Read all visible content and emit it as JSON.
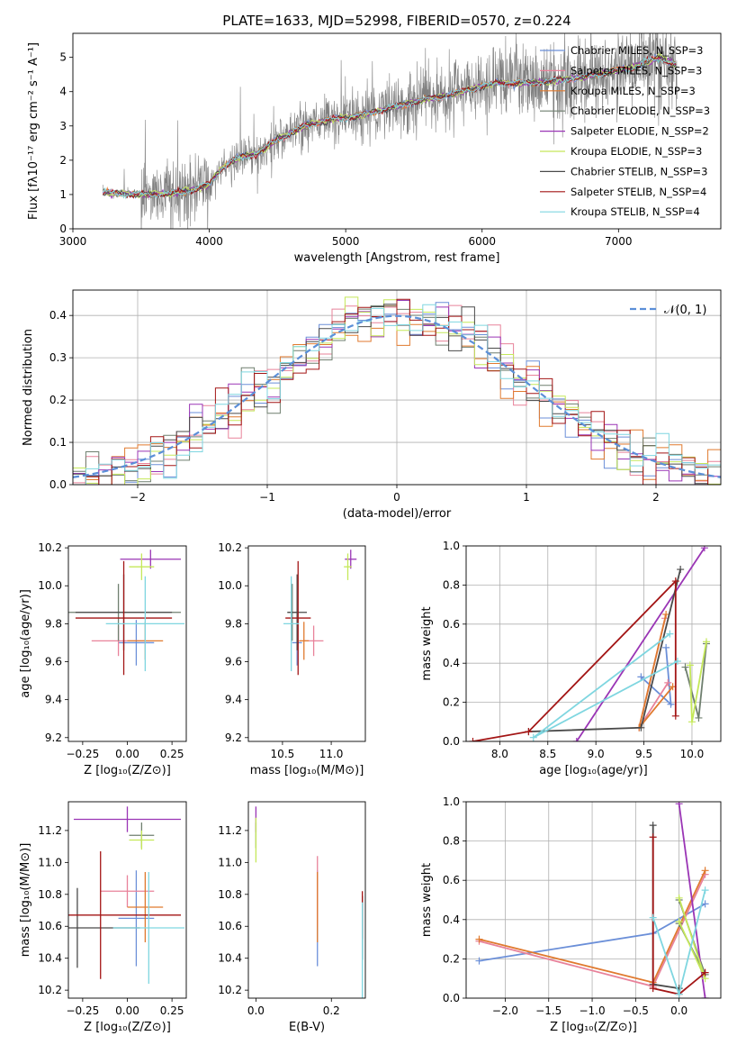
{
  "chart_data": [
    {
      "id": "spectrum",
      "type": "line",
      "title": "PLATE=1633, MJD=52998, FIBERID=0570, z=0.224",
      "xlabel": "wavelength [Angstrom, rest frame]",
      "ylabel": "Flux [fλ10⁻¹⁷ erg cm⁻² s⁻¹ A⁻¹]",
      "xlim": [
        3000,
        7750
      ],
      "ylim": [
        0,
        5.7
      ],
      "xticks": [
        "3000",
        "4000",
        "5000",
        "6000",
        "7000"
      ],
      "yticks": [
        "0",
        "1",
        "2",
        "3",
        "4",
        "5"
      ],
      "data_color": "#808080",
      "continuum_points": [
        [
          3220,
          1.05
        ],
        [
          3500,
          1.0
        ],
        [
          3700,
          1.02
        ],
        [
          3900,
          1.15
        ],
        [
          4000,
          1.3
        ],
        [
          4100,
          1.8
        ],
        [
          4200,
          2.05
        ],
        [
          4350,
          2.2
        ],
        [
          4500,
          2.6
        ],
        [
          4700,
          3.0
        ],
        [
          4900,
          3.2
        ],
        [
          5100,
          3.3
        ],
        [
          5300,
          3.5
        ],
        [
          5500,
          3.7
        ],
        [
          5700,
          3.85
        ],
        [
          5900,
          4.05
        ],
        [
          6100,
          4.25
        ],
        [
          6300,
          4.25
        ],
        [
          6500,
          4.3
        ],
        [
          6700,
          4.4
        ],
        [
          6900,
          4.55
        ],
        [
          7100,
          4.7
        ],
        [
          7300,
          5.0
        ],
        [
          7420,
          4.8
        ]
      ],
      "legend_position": "upper right",
      "series": [
        {
          "name": "Chabrier MILES, N_SSP=3",
          "color": "#6b8fd8"
        },
        {
          "name": "Salpeter MILES, N_SSP=3",
          "color": "#e8829a"
        },
        {
          "name": "Kroupa MILES, N_SSP=3",
          "color": "#e07a2f"
        },
        {
          "name": "Chabrier ELODIE, N_SSP=3",
          "color": "#6f7f6f"
        },
        {
          "name": "Salpeter ELODIE, N_SSP=2",
          "color": "#9a35b5"
        },
        {
          "name": "Kroupa ELODIE, N_SSP=3",
          "color": "#c5e85a"
        },
        {
          "name": "Chabrier STELIB, N_SSP=3",
          "color": "#4a4a4a"
        },
        {
          "name": "Salpeter STELIB, N_SSP=4",
          "color": "#a31515"
        },
        {
          "name": "Kroupa STELIB, N_SSP=4",
          "color": "#7fd6e0"
        }
      ]
    },
    {
      "id": "residuals",
      "type": "histogram",
      "xlabel": "(data-model)/error",
      "ylabel": "Normed distribution",
      "xlim": [
        -2.5,
        2.5
      ],
      "ylim": [
        0,
        0.46
      ],
      "xticks": [
        "−2",
        "−1",
        "0",
        "1",
        "2"
      ],
      "yticks": [
        "0.0",
        "0.1",
        "0.2",
        "0.3",
        "0.4"
      ],
      "bin_width": 0.1,
      "reference_curve": {
        "label": "𝒩(0, 1)",
        "color": "#5b8fd8"
      },
      "grid": true
    },
    {
      "id": "age_vs_Z",
      "type": "errorbar",
      "xlabel": "Z [log₁₀(Z/Z⊙)]",
      "ylabel": "age  [log₁₀(age/yr)]",
      "xlim": [
        -0.33,
        0.33
      ],
      "ylim": [
        9.18,
        10.21
      ],
      "xticks": [
        "−0.25",
        "0.00",
        "0.25"
      ],
      "yticks": [
        "9.2",
        "9.4",
        "9.6",
        "9.8",
        "10.0",
        "10.2"
      ],
      "points": [
        {
          "x": 0.05,
          "y": 9.7,
          "xerr": 0.1,
          "yerr": 0.12,
          "color": "#6b8fd8"
        },
        {
          "x": -0.05,
          "y": 9.71,
          "xerr": 0.15,
          "yerr": 0.08,
          "color": "#e8829a"
        },
        {
          "x": 0.1,
          "y": 9.71,
          "xerr": 0.1,
          "yerr": 0.1,
          "color": "#e07a2f"
        },
        {
          "x": -0.05,
          "y": 9.86,
          "xerr": 0.35,
          "yerr": 0.15,
          "color": "#6f7f6f"
        },
        {
          "x": 0.13,
          "y": 10.14,
          "xerr": 0.17,
          "yerr": 0.05,
          "color": "#9a35b5"
        },
        {
          "x": 0.08,
          "y": 10.1,
          "xerr": 0.07,
          "yerr": 0.07,
          "color": "#c5e85a"
        },
        {
          "x": -0.02,
          "y": 9.86,
          "xerr": 0.27,
          "yerr": 0.2,
          "color": "#4a4a4a"
        },
        {
          "x": -0.02,
          "y": 9.83,
          "xerr": 0.27,
          "yerr": 0.3,
          "color": "#a31515"
        },
        {
          "x": 0.1,
          "y": 9.8,
          "xerr": 0.22,
          "yerr": 0.25,
          "color": "#7fd6e0"
        }
      ]
    },
    {
      "id": "age_vs_mass",
      "type": "errorbar",
      "xlabel": "mass [log₁₀(M/M⊙)]",
      "ylabel": "",
      "xlim": [
        10.15,
        11.35
      ],
      "ylim": [
        9.18,
        10.21
      ],
      "xticks": [
        "10.5",
        "11.0"
      ],
      "yticks": [
        "9.2",
        "9.4",
        "9.6",
        "9.8",
        "10.0",
        "10.2"
      ],
      "points": [
        {
          "x": 10.65,
          "y": 9.7,
          "xerr": 0.05,
          "yerr": 0.12,
          "color": "#6b8fd8"
        },
        {
          "x": 10.82,
          "y": 9.71,
          "xerr": 0.1,
          "yerr": 0.08,
          "color": "#e8829a"
        },
        {
          "x": 10.72,
          "y": 9.71,
          "xerr": 0.05,
          "yerr": 0.1,
          "color": "#e07a2f"
        },
        {
          "x": 10.6,
          "y": 9.86,
          "xerr": 0.05,
          "yerr": 0.15,
          "color": "#6f7f6f"
        },
        {
          "x": 11.2,
          "y": 10.14,
          "xerr": 0.06,
          "yerr": 0.05,
          "color": "#9a35b5"
        },
        {
          "x": 11.17,
          "y": 10.1,
          "xerr": 0.04,
          "yerr": 0.07,
          "color": "#c5e85a"
        },
        {
          "x": 10.65,
          "y": 9.86,
          "xerr": 0.1,
          "yerr": 0.2,
          "color": "#4a4a4a"
        },
        {
          "x": 10.66,
          "y": 9.83,
          "xerr": 0.13,
          "yerr": 0.3,
          "color": "#a31515"
        },
        {
          "x": 10.59,
          "y": 9.8,
          "xerr": 0.08,
          "yerr": 0.25,
          "color": "#7fd6e0"
        }
      ]
    },
    {
      "id": "massweight_vs_age",
      "type": "line",
      "xlabel": "age  [log₁₀(age/yr)]",
      "ylabel": "mass weight",
      "xlim": [
        7.65,
        10.3
      ],
      "ylim": [
        0,
        1.0
      ],
      "xticks": [
        "8.0",
        "8.5",
        "9.0",
        "9.5",
        "10.0"
      ],
      "yticks": [
        "0.0",
        "0.2",
        "0.4",
        "0.6",
        "0.8",
        "1.0"
      ],
      "grid": true,
      "series": [
        {
          "color": "#6b8fd8",
          "points": [
            [
              9.47,
              0.33
            ],
            [
              9.78,
              0.19
            ],
            [
              9.73,
              0.48
            ]
          ]
        },
        {
          "color": "#e8829a",
          "points": [
            [
              9.72,
              0.63
            ],
            [
              9.45,
              0.07
            ],
            [
              9.75,
              0.3
            ]
          ]
        },
        {
          "color": "#e07a2f",
          "points": [
            [
              9.73,
              0.65
            ],
            [
              9.45,
              0.07
            ],
            [
              9.8,
              0.28
            ]
          ]
        },
        {
          "color": "#6f7f6f",
          "points": [
            [
              10.15,
              0.5
            ],
            [
              10.07,
              0.12
            ],
            [
              9.93,
              0.38
            ]
          ]
        },
        {
          "color": "#9a35b5",
          "points": [
            [
              8.8,
              0.0
            ],
            [
              10.13,
              0.99
            ]
          ]
        },
        {
          "color": "#c5e85a",
          "points": [
            [
              10.15,
              0.51
            ],
            [
              10.0,
              0.1
            ],
            [
              9.98,
              0.39
            ]
          ]
        },
        {
          "color": "#4a4a4a",
          "points": [
            [
              9.88,
              0.88
            ],
            [
              9.47,
              0.07
            ],
            [
              8.3,
              0.05
            ]
          ]
        },
        {
          "color": "#a31515",
          "points": [
            [
              7.72,
              0.0
            ],
            [
              8.3,
              0.05
            ],
            [
              9.83,
              0.82
            ],
            [
              9.83,
              0.13
            ]
          ]
        },
        {
          "color": "#7fd6e0",
          "points": [
            [
              9.77,
              0.55
            ],
            [
              8.35,
              0.02
            ],
            [
              9.85,
              0.41
            ]
          ]
        }
      ]
    },
    {
      "id": "mass_vs_Z",
      "type": "errorbar",
      "xlabel": "Z [log₁₀(Z/Z⊙)]",
      "ylabel": "mass [log₁₀(M/M⊙)]",
      "xlim": [
        -0.33,
        0.33
      ],
      "ylim": [
        10.15,
        11.38
      ],
      "xticks": [
        "−0.25",
        "0.00",
        "0.25"
      ],
      "yticks": [
        "10.2",
        "10.4",
        "10.6",
        "10.8",
        "11.0",
        "11.2"
      ],
      "points": [
        {
          "x": 0.05,
          "y": 10.65,
          "xerr": 0.1,
          "yerr": 0.3,
          "color": "#6b8fd8"
        },
        {
          "x": 0.0,
          "y": 10.82,
          "xerr": 0.15,
          "yerr": 0.1,
          "color": "#e8829a"
        },
        {
          "x": 0.1,
          "y": 10.72,
          "xerr": 0.1,
          "yerr": 0.22,
          "color": "#e07a2f"
        },
        {
          "x": 0.08,
          "y": 11.17,
          "xerr": 0.07,
          "yerr": 0.08,
          "color": "#6f7f6f"
        },
        {
          "x": 0.0,
          "y": 11.27,
          "xerr": 0.3,
          "yerr": 0.08,
          "color": "#9a35b5"
        },
        {
          "x": 0.08,
          "y": 11.14,
          "xerr": 0.07,
          "yerr": 0.06,
          "color": "#c5e85a"
        },
        {
          "x": -0.28,
          "y": 10.59,
          "xerr": 0.35,
          "yerr": 0.25,
          "color": "#4a4a4a"
        },
        {
          "x": -0.15,
          "y": 10.67,
          "xerr": 0.45,
          "yerr": 0.4,
          "color": "#a31515"
        },
        {
          "x": 0.12,
          "y": 10.59,
          "xerr": 0.2,
          "yerr": 0.35,
          "color": "#7fd6e0"
        }
      ]
    },
    {
      "id": "mass_vs_ebv",
      "type": "errorbar",
      "xlabel": "E(B-V)",
      "ylabel": "",
      "xlim": [
        -0.02,
        0.29
      ],
      "ylim": [
        10.15,
        11.38
      ],
      "xticks": [
        "0.0",
        "0.2"
      ],
      "yticks": [
        "10.2",
        "10.4",
        "10.6",
        "10.8",
        "11.0",
        "11.2"
      ],
      "points": [
        {
          "x": 0.163,
          "y": 10.65,
          "xerr": 0.0,
          "yerr": 0.3,
          "color": "#6b8fd8"
        },
        {
          "x": 0.163,
          "y": 10.82,
          "xerr": 0.0,
          "yerr": 0.22,
          "color": "#e8829a"
        },
        {
          "x": 0.163,
          "y": 10.72,
          "xerr": 0.0,
          "yerr": 0.22,
          "color": "#e07a2f"
        },
        {
          "x": 0.0,
          "y": 11.17,
          "xerr": 0.0,
          "yerr": 0.08,
          "color": "#6f7f6f"
        },
        {
          "x": 0.0,
          "y": 11.27,
          "xerr": 0.0,
          "yerr": 0.08,
          "color": "#9a35b5"
        },
        {
          "x": 0.0,
          "y": 11.14,
          "xerr": 0.0,
          "yerr": 0.14,
          "color": "#c5e85a"
        },
        {
          "x": 0.282,
          "y": 10.59,
          "xerr": 0.0,
          "yerr": 0.2,
          "color": "#4a4a4a"
        },
        {
          "x": 0.282,
          "y": 10.67,
          "xerr": 0.0,
          "yerr": 0.15,
          "color": "#a31515"
        },
        {
          "x": 0.282,
          "y": 10.45,
          "xerr": 0.0,
          "yerr": 0.3,
          "color": "#7fd6e0"
        }
      ]
    },
    {
      "id": "massweight_vs_Z",
      "type": "line",
      "xlabel": "Z [log₁₀(Z/Z⊙)]",
      "ylabel": "mass weight",
      "xlim": [
        -2.45,
        0.48
      ],
      "ylim": [
        0,
        1.0
      ],
      "xticks": [
        "−2.0",
        "−1.5",
        "−1.0",
        "−0.5",
        "0.0"
      ],
      "yticks": [
        "0.0",
        "0.2",
        "0.4",
        "0.6",
        "0.8",
        "1.0"
      ],
      "grid": true,
      "series": [
        {
          "color": "#6b8fd8",
          "points": [
            [
              -2.3,
              0.19
            ],
            [
              -0.3,
              0.33
            ],
            [
              0.3,
              0.48
            ]
          ]
        },
        {
          "color": "#e8829a",
          "points": [
            [
              -2.3,
              0.29
            ],
            [
              -0.3,
              0.06
            ],
            [
              0.3,
              0.63
            ]
          ]
        },
        {
          "color": "#e07a2f",
          "points": [
            [
              -2.3,
              0.3
            ],
            [
              -0.3,
              0.08
            ],
            [
              0.3,
              0.65
            ]
          ]
        },
        {
          "color": "#6f7f6f",
          "points": [
            [
              0.0,
              0.5
            ],
            [
              0.3,
              0.12
            ],
            [
              0.0,
              0.38
            ]
          ]
        },
        {
          "color": "#9a35b5",
          "points": [
            [
              0.0,
              0.99
            ],
            [
              0.3,
              0.0
            ]
          ]
        },
        {
          "color": "#c5e85a",
          "points": [
            [
              0.0,
              0.51
            ],
            [
              0.3,
              0.1
            ],
            [
              0.0,
              0.39
            ]
          ]
        },
        {
          "color": "#4a4a4a",
          "points": [
            [
              -0.3,
              0.88
            ],
            [
              -0.3,
              0.07
            ],
            [
              0.0,
              0.05
            ]
          ]
        },
        {
          "color": "#a31515",
          "points": [
            [
              -0.3,
              0.82
            ],
            [
              -0.3,
              0.05
            ],
            [
              0.0,
              0.02
            ],
            [
              0.3,
              0.13
            ]
          ]
        },
        {
          "color": "#7fd6e0",
          "points": [
            [
              -0.3,
              0.41
            ],
            [
              0.0,
              0.02
            ],
            [
              0.3,
              0.55
            ]
          ]
        }
      ]
    }
  ]
}
